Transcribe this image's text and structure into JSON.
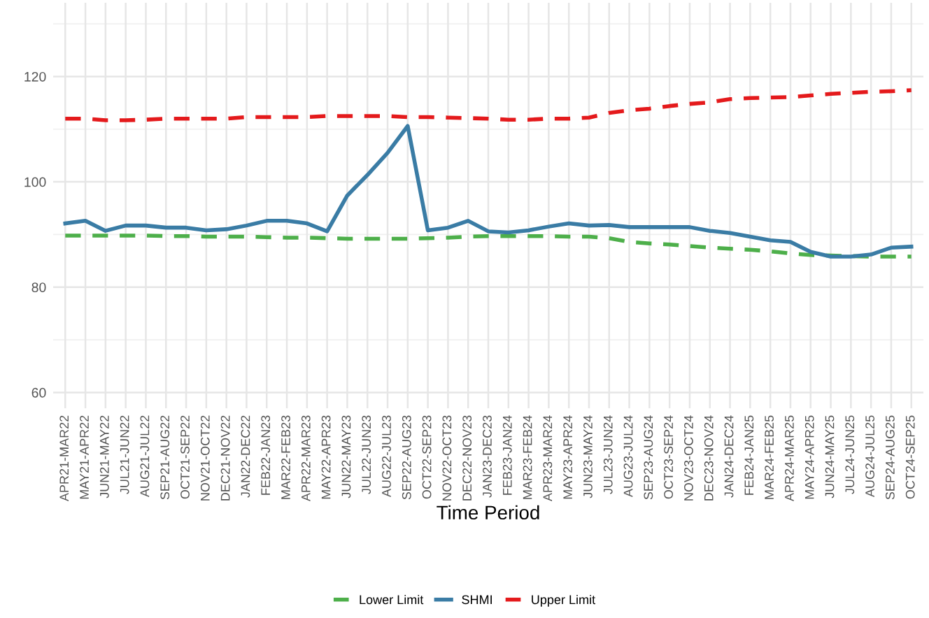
{
  "chart_data": {
    "type": "line",
    "xlabel": "Time Period",
    "categories": [
      "APR21-MAR22",
      "MAY21-APR22",
      "JUN21-MAY22",
      "JUL21-JUN22",
      "AUG21-JUL22",
      "SEP21-AUG22",
      "OCT21-SEP22",
      "NOV21-OCT22",
      "DEC21-NOV22",
      "JAN22-DEC22",
      "FEB22-JAN23",
      "MAR22-FEB23",
      "APR22-MAR23",
      "MAY22-APR23",
      "JUN22-MAY23",
      "JUL22-JUN23",
      "AUG22-JUL23",
      "SEP22-AUG23",
      "OCT22-SEP23",
      "NOV22-OCT23",
      "DEC22-NOV23",
      "JAN23-DEC23",
      "FEB23-JAN24",
      "MAR23-FEB24",
      "APR23-MAR24",
      "MAY23-APR24",
      "JUN23-MAY24",
      "JUL23-JUN24",
      "AUG23-JUL24",
      "SEP23-AUG24",
      "OCT23-SEP24",
      "NOV23-OCT24",
      "DEC23-NOV24",
      "JAN24-DEC24",
      "FEB24-JAN25",
      "MAR24-FEB25",
      "APR24-MAR25",
      "MAY24-APR25",
      "JUN24-MAY25",
      "JUL24-JUN25",
      "AUG24-JUL25",
      "SEP24-AUG25",
      "OCT24-SEP25"
    ],
    "series": [
      {
        "name": "Lower Limit",
        "color": "#4daf4a",
        "line_style": "dashed",
        "values": [
          89.8,
          89.8,
          89.8,
          89.8,
          89.8,
          89.7,
          89.7,
          89.6,
          89.6,
          89.6,
          89.5,
          89.4,
          89.4,
          89.3,
          89.2,
          89.2,
          89.2,
          89.2,
          89.3,
          89.4,
          89.6,
          89.7,
          89.7,
          89.7,
          89.7,
          89.6,
          89.6,
          89.3,
          88.6,
          88.3,
          88.1,
          87.8,
          87.5,
          87.3,
          87.1,
          86.8,
          86.4,
          86.1,
          86.0,
          85.9,
          85.8,
          85.8,
          85.8
        ]
      },
      {
        "name": "SHMI",
        "color": "#3a7ca5",
        "line_style": "solid",
        "values": [
          92.1,
          92.6,
          90.7,
          91.7,
          91.7,
          91.3,
          91.3,
          90.8,
          91.0,
          91.7,
          92.6,
          92.6,
          92.1,
          90.6,
          97.4,
          101.3,
          105.5,
          110.6,
          90.8,
          91.3,
          92.6,
          90.6,
          90.4,
          90.8,
          91.5,
          92.1,
          91.7,
          91.8,
          91.4,
          91.4,
          91.4,
          91.4,
          90.7,
          90.3,
          89.6,
          88.9,
          88.6,
          86.7,
          85.8,
          85.8,
          86.2,
          87.5,
          87.7
        ]
      },
      {
        "name": "Upper Limit",
        "color": "#e41a1c",
        "line_style": "dashed",
        "values": [
          112.0,
          112.0,
          111.7,
          111.7,
          111.8,
          112.0,
          112.0,
          112.0,
          112.0,
          112.3,
          112.3,
          112.3,
          112.3,
          112.5,
          112.5,
          112.5,
          112.5,
          112.3,
          112.3,
          112.2,
          112.1,
          112.0,
          111.8,
          111.8,
          112.0,
          112.0,
          112.2,
          113.1,
          113.6,
          113.9,
          114.4,
          114.8,
          115.1,
          115.7,
          115.9,
          116.0,
          116.1,
          116.4,
          116.7,
          116.9,
          117.1,
          117.2,
          117.4
        ]
      }
    ],
    "ylim": [
      57,
      134
    ],
    "yticks": [
      60,
      80,
      100,
      120
    ],
    "grid": true,
    "legend": "bottom",
    "marker": "none"
  }
}
